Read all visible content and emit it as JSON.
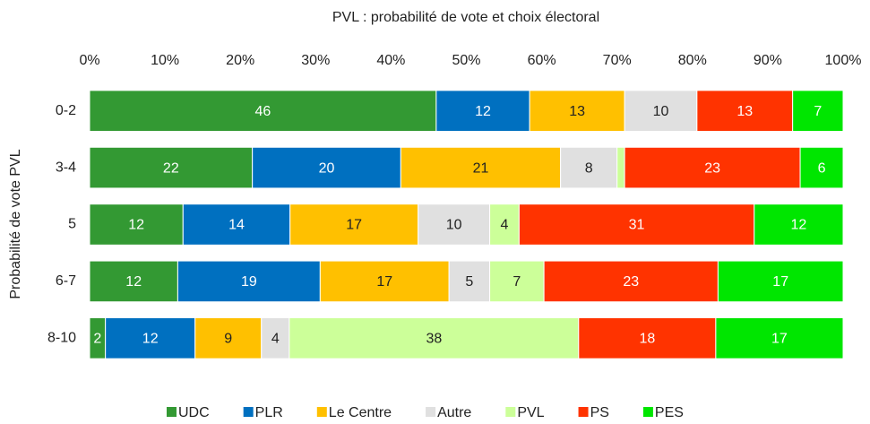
{
  "chart_data": {
    "type": "stacked_barh",
    "title": "PVL : probabilité de vote et choix électoral",
    "y_label": "Probabilité de vote PVL",
    "categories": [
      "0-2",
      "3-4",
      "5",
      "6-7",
      "8-10"
    ],
    "xlim": [
      0,
      100
    ],
    "xticks": [
      {
        "value": 0,
        "label": "0%"
      },
      {
        "value": 10,
        "label": "10%"
      },
      {
        "value": 20,
        "label": "20%"
      },
      {
        "value": 30,
        "label": "30%"
      },
      {
        "value": 40,
        "label": "40%"
      },
      {
        "value": 50,
        "label": "50%"
      },
      {
        "value": 60,
        "label": "60%"
      },
      {
        "value": 70,
        "label": "70%"
      },
      {
        "value": 80,
        "label": "80%"
      },
      {
        "value": 90,
        "label": "90%"
      },
      {
        "value": 100,
        "label": "100%"
      }
    ],
    "legend": "bottom",
    "series": [
      {
        "name": "UDC",
        "color": "#339933",
        "values": [
          46.0,
          21.6,
          12.4,
          11.7,
          2.1
        ],
        "value_labels": [
          "46",
          "22",
          "12",
          "12",
          "2"
        ]
      },
      {
        "name": "PLR",
        "color": "#0070c0",
        "values": [
          12.4,
          19.7,
          14.2,
          18.9,
          11.9
        ],
        "value_labels": [
          "12",
          "20",
          "14",
          "19",
          "12"
        ]
      },
      {
        "name": "Le Centre",
        "color": "#ffc000",
        "values": [
          12.6,
          21.2,
          17.0,
          17.1,
          8.8
        ],
        "value_labels": [
          "13",
          "21",
          "17",
          "17",
          "9"
        ]
      },
      {
        "name": "Autre",
        "color": "#e0e0e0",
        "values": [
          9.6,
          7.5,
          9.5,
          5.4,
          3.7
        ],
        "value_labels": [
          "10",
          "8",
          "10",
          "5",
          "4"
        ]
      },
      {
        "name": "PVL",
        "color": "#ccff99",
        "values": [
          0,
          1.0,
          3.9,
          7.2,
          38.4
        ],
        "value_labels": [
          null,
          null,
          "4",
          "7",
          "38"
        ]
      },
      {
        "name": "PS",
        "color": "#ff3300",
        "values": [
          12.7,
          23.3,
          31.2,
          23.1,
          18.2
        ],
        "value_labels": [
          "13",
          "23",
          "31",
          "23",
          "18"
        ]
      },
      {
        "name": "PES",
        "color": "#00e600",
        "values": [
          6.7,
          5.7,
          11.8,
          16.6,
          16.9
        ],
        "value_labels": [
          "7",
          "6",
          "12",
          "17",
          "17"
        ]
      }
    ]
  }
}
